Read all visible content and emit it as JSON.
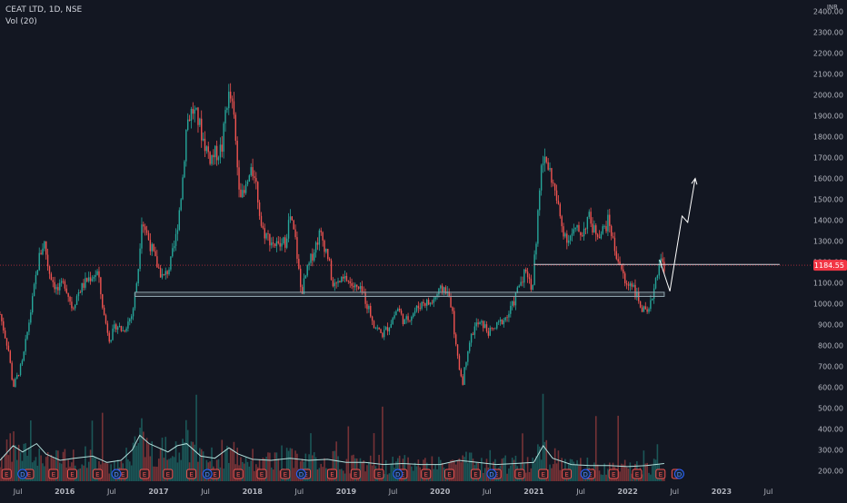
{
  "header": {
    "symbol_line": "CEAT LTD, 1D, NSE",
    "volume_line": "Vol (20)"
  },
  "chart_data": {
    "type": "candlestick",
    "currency": "INR",
    "price_axis": {
      "ticks": [
        200,
        300,
        400,
        500,
        600,
        700,
        800,
        900,
        1000,
        1100,
        1200,
        1300,
        1400,
        1500,
        1600,
        1700,
        1800,
        1900,
        2000,
        2100,
        2200,
        2300,
        2400
      ],
      "tick_labels": [
        "200.00",
        "300.00",
        "400.00",
        "500.00",
        "600.00",
        "700.00",
        "800.00",
        "900.00",
        "1000.00",
        "1100.00",
        "1200.00",
        "1300.00",
        "1400.00",
        "1500.00",
        "1600.00",
        "1700.00",
        "1800.00",
        "1900.00",
        "2000.00",
        "2100.00",
        "2200.00",
        "2300.00",
        "2400.00"
      ],
      "range": [
        150,
        2420
      ]
    },
    "time_axis": {
      "labels": [
        {
          "t": 2015.5,
          "label": "Jul"
        },
        {
          "t": 2016.0,
          "label": "2016"
        },
        {
          "t": 2016.5,
          "label": "Jul"
        },
        {
          "t": 2017.0,
          "label": "2017"
        },
        {
          "t": 2017.5,
          "label": "Jul"
        },
        {
          "t": 2018.0,
          "label": "2018"
        },
        {
          "t": 2018.5,
          "label": "Jul"
        },
        {
          "t": 2019.0,
          "label": "2019"
        },
        {
          "t": 2019.5,
          "label": "Jul"
        },
        {
          "t": 2020.0,
          "label": "2020"
        },
        {
          "t": 2020.5,
          "label": "Jul"
        },
        {
          "t": 2021.0,
          "label": "2021"
        },
        {
          "t": 2021.5,
          "label": "Jul"
        },
        {
          "t": 2022.0,
          "label": "2022"
        },
        {
          "t": 2022.5,
          "label": "Jul"
        },
        {
          "t": 2023.0,
          "label": "2023"
        },
        {
          "t": 2023.5,
          "label": "Jul"
        }
      ],
      "range": [
        2015.31,
        2023.96
      ]
    },
    "price_path": [
      [
        2015.31,
        950
      ],
      [
        2015.4,
        780
      ],
      [
        2015.45,
        600
      ],
      [
        2015.55,
        720
      ],
      [
        2015.65,
        1000
      ],
      [
        2015.72,
        1210
      ],
      [
        2015.78,
        1300
      ],
      [
        2015.83,
        1160
      ],
      [
        2015.92,
        1060
      ],
      [
        2016.0,
        1100
      ],
      [
        2016.08,
        980
      ],
      [
        2016.15,
        1060
      ],
      [
        2016.25,
        1120
      ],
      [
        2016.35,
        1150
      ],
      [
        2016.42,
        940
      ],
      [
        2016.48,
        830
      ],
      [
        2016.55,
        900
      ],
      [
        2016.62,
        870
      ],
      [
        2016.72,
        950
      ],
      [
        2016.78,
        1150
      ],
      [
        2016.82,
        1410
      ],
      [
        2016.9,
        1300
      ],
      [
        2016.97,
        1200
      ],
      [
        2017.05,
        1120
      ],
      [
        2017.12,
        1180
      ],
      [
        2017.18,
        1300
      ],
      [
        2017.25,
        1560
      ],
      [
        2017.3,
        1870
      ],
      [
        2017.36,
        1930
      ],
      [
        2017.42,
        1880
      ],
      [
        2017.48,
        1780
      ],
      [
        2017.55,
        1700
      ],
      [
        2017.62,
        1720
      ],
      [
        2017.68,
        1750
      ],
      [
        2017.72,
        1960
      ],
      [
        2017.76,
        2000
      ],
      [
        2017.8,
        1900
      ],
      [
        2017.85,
        1600
      ],
      [
        2017.9,
        1500
      ],
      [
        2017.96,
        1600
      ],
      [
        2018.02,
        1640
      ],
      [
        2018.1,
        1360
      ],
      [
        2018.18,
        1310
      ],
      [
        2018.28,
        1270
      ],
      [
        2018.35,
        1300
      ],
      [
        2018.4,
        1420
      ],
      [
        2018.46,
        1300
      ],
      [
        2018.52,
        1050
      ],
      [
        2018.58,
        1150
      ],
      [
        2018.65,
        1250
      ],
      [
        2018.72,
        1340
      ],
      [
        2018.8,
        1240
      ],
      [
        2018.86,
        1080
      ],
      [
        2018.92,
        1100
      ],
      [
        2019.0,
        1120
      ],
      [
        2019.08,
        1080
      ],
      [
        2019.18,
        1050
      ],
      [
        2019.3,
        900
      ],
      [
        2019.38,
        850
      ],
      [
        2019.45,
        890
      ],
      [
        2019.55,
        980
      ],
      [
        2019.62,
        910
      ],
      [
        2019.72,
        960
      ],
      [
        2019.82,
        1010
      ],
      [
        2019.9,
        1000
      ],
      [
        2019.98,
        1050
      ],
      [
        2020.05,
        1080
      ],
      [
        2020.12,
        1000
      ],
      [
        2020.18,
        750
      ],
      [
        2020.24,
        620
      ],
      [
        2020.3,
        800
      ],
      [
        2020.38,
        900
      ],
      [
        2020.46,
        900
      ],
      [
        2020.52,
        860
      ],
      [
        2020.58,
        880
      ],
      [
        2020.66,
        920
      ],
      [
        2020.72,
        940
      ],
      [
        2020.78,
        1000
      ],
      [
        2020.85,
        1100
      ],
      [
        2020.92,
        1170
      ],
      [
        2020.98,
        1060
      ],
      [
        2021.04,
        1400
      ],
      [
        2021.08,
        1650
      ],
      [
        2021.12,
        1700
      ],
      [
        2021.18,
        1620
      ],
      [
        2021.24,
        1500
      ],
      [
        2021.3,
        1370
      ],
      [
        2021.36,
        1310
      ],
      [
        2021.45,
        1350
      ],
      [
        2021.52,
        1340
      ],
      [
        2021.58,
        1420
      ],
      [
        2021.64,
        1350
      ],
      [
        2021.72,
        1340
      ],
      [
        2021.8,
        1400
      ],
      [
        2021.86,
        1260
      ],
      [
        2021.92,
        1190
      ],
      [
        2021.98,
        1080
      ],
      [
        2022.04,
        1110
      ],
      [
        2022.1,
        1030
      ],
      [
        2022.16,
        970
      ],
      [
        2022.22,
        940
      ],
      [
        2022.28,
        1080
      ],
      [
        2022.34,
        1210
      ],
      [
        2022.39,
        1185
      ]
    ],
    "volume_path": [
      [
        2015.31,
        250
      ],
      [
        2015.45,
        320
      ],
      [
        2015.55,
        290
      ],
      [
        2015.7,
        330
      ],
      [
        2015.8,
        280
      ],
      [
        2015.95,
        250
      ],
      [
        2016.1,
        260
      ],
      [
        2016.3,
        270
      ],
      [
        2016.45,
        240
      ],
      [
        2016.6,
        250
      ],
      [
        2016.72,
        300
      ],
      [
        2016.8,
        370
      ],
      [
        2016.9,
        330
      ],
      [
        2017.0,
        310
      ],
      [
        2017.1,
        290
      ],
      [
        2017.2,
        320
      ],
      [
        2017.3,
        330
      ],
      [
        2017.45,
        270
      ],
      [
        2017.6,
        260
      ],
      [
        2017.75,
        310
      ],
      [
        2017.85,
        280
      ],
      [
        2018.0,
        255
      ],
      [
        2018.2,
        250
      ],
      [
        2018.4,
        260
      ],
      [
        2018.6,
        250
      ],
      [
        2018.8,
        255
      ],
      [
        2019.0,
        240
      ],
      [
        2019.2,
        240
      ],
      [
        2019.4,
        230
      ],
      [
        2019.6,
        235
      ],
      [
        2019.8,
        230
      ],
      [
        2020.0,
        230
      ],
      [
        2020.2,
        250
      ],
      [
        2020.4,
        240
      ],
      [
        2020.6,
        230
      ],
      [
        2020.8,
        235
      ],
      [
        2021.0,
        240
      ],
      [
        2021.1,
        320
      ],
      [
        2021.2,
        260
      ],
      [
        2021.4,
        230
      ],
      [
        2021.6,
        225
      ],
      [
        2021.8,
        225
      ],
      [
        2022.0,
        220
      ],
      [
        2022.2,
        225
      ],
      [
        2022.39,
        235
      ]
    ],
    "last_price": 1184.55,
    "last_price_label": "1184.55",
    "annotations": {
      "support_zone": {
        "t_start": 2016.75,
        "t_end": 2022.39,
        "low": 1035,
        "high": 1055
      },
      "horizontal_line": {
        "t_start": 2021.0,
        "t_end": 2023.62,
        "price": 1188
      },
      "projected_path": [
        [
          2022.34,
          1210
        ],
        [
          2022.45,
          1060
        ],
        [
          2022.58,
          1420
        ],
        [
          2022.64,
          1390
        ],
        [
          2022.72,
          1600
        ]
      ]
    },
    "earnings_markers": {
      "letter": "E",
      "t": [
        2015.38,
        2015.62,
        2015.88,
        2016.08,
        2016.35,
        2016.57,
        2016.62,
        2016.85,
        2017.1,
        2017.35,
        2017.6,
        2017.85,
        2018.1,
        2018.35,
        2018.57,
        2018.85,
        2019.1,
        2019.35,
        2019.6,
        2019.85,
        2020.1,
        2020.38,
        2020.6,
        2020.85,
        2021.1,
        2021.35,
        2021.6,
        2021.85,
        2022.1,
        2022.35,
        2022.52
      ],
      "dividend_letter": "D",
      "dividend_t": [
        2015.55,
        2016.55,
        2017.52,
        2018.52,
        2019.55,
        2020.55,
        2021.55,
        2022.55
      ]
    },
    "colors": {
      "background": "#131722",
      "up": "#26a69a",
      "down": "#ef5350",
      "volume_line": "#b2dfdb",
      "support": "#90a4ae",
      "axis_text": "#b2b5be",
      "price_tag": "#f23645"
    }
  }
}
